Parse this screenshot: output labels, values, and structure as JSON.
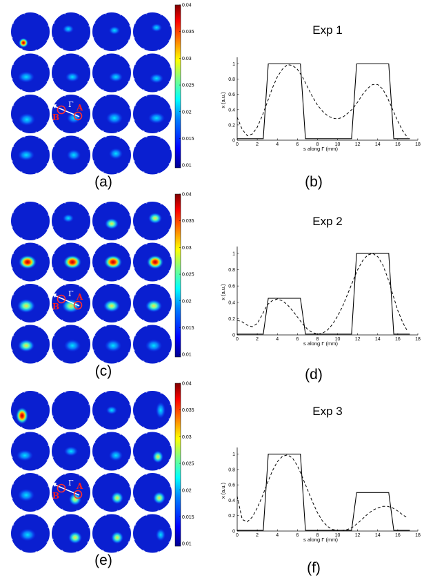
{
  "colorbar": {
    "ticks": [
      "0.04",
      "0.035",
      "0.03",
      "0.025",
      "0.02",
      "0.015",
      "0.01"
    ],
    "tick_values": [
      0.04,
      0.035,
      0.03,
      0.025,
      0.02,
      0.015,
      0.01
    ],
    "range": [
      0.0095,
      0.04
    ],
    "colormap": [
      "#00008f",
      "#0000ff",
      "#0080ff",
      "#00ffff",
      "#80ff80",
      "#ffff00",
      "#ff8000",
      "#ff0000",
      "#800000"
    ]
  },
  "maps": [
    {
      "label": "(a)",
      "background_level": 0.0125,
      "point_a": "A",
      "point_b": "B",
      "gamma": "Γ",
      "blobs": [
        [],
        [],
        [],
        [],
        [],
        [],
        [],
        [],
        [],
        [],
        [],
        [],
        [],
        [],
        [],
        []
      ]
    },
    {
      "label": "(c)",
      "background_level": 0.0125,
      "point_a": "A",
      "point_b": "B",
      "gamma": "Γ",
      "blobs": []
    },
    {
      "label": "(e)",
      "background_level": 0.0125,
      "point_a": "A",
      "point_b": "B",
      "gamma": "Γ",
      "blobs": []
    }
  ],
  "chart_data": [
    {
      "type": "line",
      "panel_label": "(b)",
      "title": "Exp 1",
      "xlabel": "s along Γ (mm)",
      "ylabel": "x (a.u.)",
      "xlim": [
        0,
        18
      ],
      "ylim": [
        0,
        1.05
      ],
      "xticks": [
        0,
        2,
        4,
        6,
        8,
        10,
        12,
        14,
        16,
        18
      ],
      "yticks": [
        0,
        0.2,
        0.4,
        0.6,
        0.8,
        1
      ],
      "ytick_labels": [
        "0",
        "0.2",
        "0.4",
        "0.6",
        "0.8",
        "1"
      ],
      "series": [
        {
          "style": "solid",
          "x": [
            0,
            2.6,
            3.1,
            6.3,
            6.8,
            11.4,
            11.9,
            15.1,
            15.6,
            17.2
          ],
          "y": [
            0.02,
            0.02,
            1.0,
            1.0,
            0.02,
            0.02,
            1.0,
            1.0,
            0.02,
            0.02
          ]
        },
        {
          "style": "dashed",
          "x": [
            0,
            0.5,
            1,
            1.5,
            2,
            2.5,
            3,
            3.5,
            4,
            4.5,
            5,
            5.5,
            6,
            6.5,
            7,
            7.5,
            8,
            8.5,
            9,
            9.5,
            10,
            10.5,
            11,
            11.5,
            12,
            12.5,
            13,
            13.5,
            14,
            14.5,
            15,
            15.5,
            16,
            16.5,
            17
          ],
          "y": [
            0.3,
            0.14,
            0.06,
            0.08,
            0.17,
            0.32,
            0.5,
            0.68,
            0.83,
            0.93,
            0.99,
            0.98,
            0.93,
            0.83,
            0.7,
            0.57,
            0.46,
            0.38,
            0.32,
            0.29,
            0.28,
            0.3,
            0.35,
            0.41,
            0.5,
            0.6,
            0.68,
            0.73,
            0.73,
            0.67,
            0.55,
            0.4,
            0.25,
            0.12,
            0.03
          ]
        }
      ]
    },
    {
      "type": "line",
      "panel_label": "(d)",
      "title": "Exp 2",
      "xlabel": "s along Γ (mm)",
      "ylabel": "x (a.u.)",
      "xlim": [
        0,
        18
      ],
      "ylim": [
        0,
        1.05
      ],
      "xticks": [
        0,
        2,
        4,
        6,
        8,
        10,
        12,
        14,
        16,
        18
      ],
      "yticks": [
        0,
        0.2,
        0.4,
        0.6,
        0.8,
        1
      ],
      "ytick_labels": [
        "0",
        "0.2",
        "0.4",
        "0.6",
        "0.8",
        "1"
      ],
      "series": [
        {
          "style": "solid",
          "x": [
            0,
            2.6,
            3.1,
            6.3,
            6.8,
            11.4,
            11.9,
            15.1,
            15.6,
            17.2
          ],
          "y": [
            0.01,
            0.01,
            0.45,
            0.45,
            0.01,
            0.01,
            1.0,
            1.0,
            0.01,
            0.01
          ]
        },
        {
          "style": "dashed",
          "x": [
            0,
            0.5,
            1,
            1.5,
            2,
            2.5,
            3,
            3.5,
            4,
            4.5,
            5,
            5.5,
            6,
            6.5,
            7,
            7.5,
            8,
            8.5,
            9,
            9.5,
            10,
            10.5,
            11,
            11.5,
            12,
            12.5,
            13,
            13.5,
            14,
            14.5,
            15,
            15.5,
            16,
            16.5,
            17
          ],
          "y": [
            0.18,
            0.16,
            0.12,
            0.1,
            0.14,
            0.25,
            0.37,
            0.42,
            0.44,
            0.42,
            0.37,
            0.3,
            0.22,
            0.14,
            0.07,
            0.03,
            0.01,
            0.02,
            0.06,
            0.13,
            0.23,
            0.35,
            0.5,
            0.65,
            0.8,
            0.91,
            0.98,
            1.0,
            0.96,
            0.86,
            0.7,
            0.5,
            0.3,
            0.15,
            0.04
          ]
        }
      ]
    },
    {
      "type": "line",
      "panel_label": "(f)",
      "title": "Exp 3",
      "xlabel": "s along Γ (mm)",
      "ylabel": "x (a.u.)",
      "xlim": [
        0,
        18
      ],
      "ylim": [
        0,
        1.05
      ],
      "xticks": [
        0,
        2,
        4,
        6,
        8,
        10,
        12,
        14,
        16,
        18
      ],
      "yticks": [
        0,
        0.2,
        0.4,
        0.6,
        0.8,
        1
      ],
      "ytick_labels": [
        "0",
        "0.2",
        "0.4",
        "0.6",
        "0.8",
        "1"
      ],
      "series": [
        {
          "style": "solid",
          "x": [
            0,
            2.6,
            3.1,
            6.3,
            6.8,
            11.4,
            11.9,
            15.1,
            15.6,
            17.2
          ],
          "y": [
            0.01,
            0.01,
            1.0,
            1.0,
            0.01,
            0.01,
            0.5,
            0.5,
            0.01,
            0.01
          ]
        },
        {
          "style": "dashed",
          "x": [
            0,
            0.5,
            1,
            1.5,
            2,
            2.5,
            3,
            3.5,
            4,
            4.5,
            5,
            5.5,
            6,
            6.5,
            7,
            7.5,
            8,
            8.5,
            9,
            9.5,
            10,
            10.5,
            11,
            11.5,
            12,
            12.5,
            13,
            13.5,
            14,
            14.5,
            15,
            15.5,
            16,
            16.5,
            17
          ],
          "y": [
            0.45,
            0.15,
            0.12,
            0.18,
            0.3,
            0.45,
            0.62,
            0.78,
            0.9,
            0.97,
            0.99,
            0.95,
            0.85,
            0.7,
            0.54,
            0.38,
            0.24,
            0.13,
            0.06,
            0.02,
            0.01,
            0.01,
            0.02,
            0.05,
            0.1,
            0.16,
            0.22,
            0.27,
            0.3,
            0.32,
            0.32,
            0.3,
            0.26,
            0.21,
            0.17
          ]
        }
      ]
    }
  ]
}
